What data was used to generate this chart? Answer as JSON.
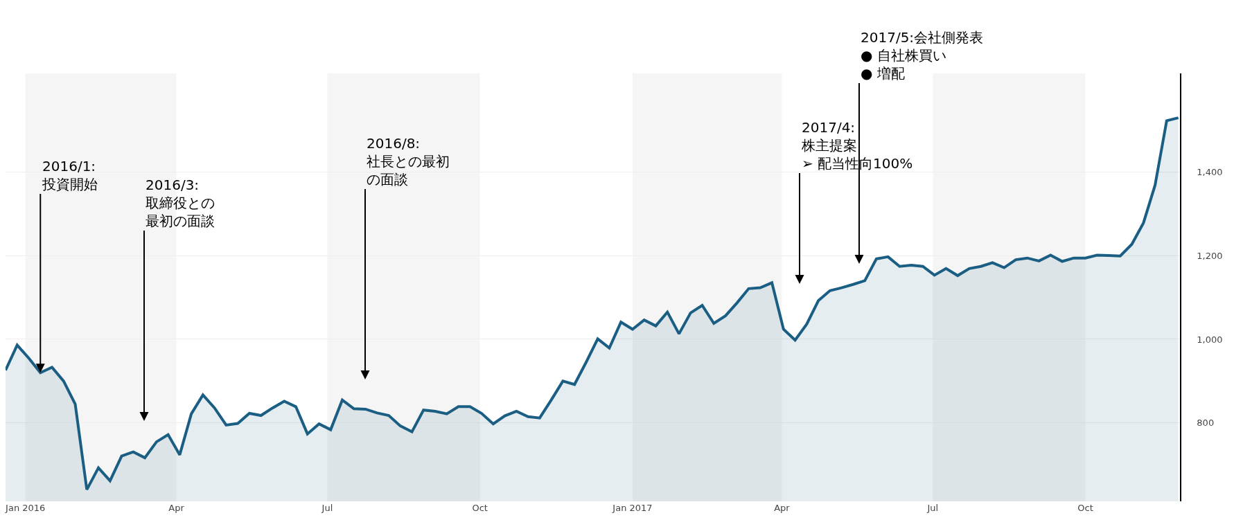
{
  "chart_data": {
    "type": "area",
    "x": [
      "2015-12-20",
      "2015-12-27",
      "2016-01-03",
      "2016-01-10",
      "2016-01-17",
      "2016-01-24",
      "2016-01-31",
      "2016-02-07",
      "2016-02-14",
      "2016-02-21",
      "2016-02-28",
      "2016-03-06",
      "2016-03-13",
      "2016-03-20",
      "2016-03-27",
      "2016-04-03",
      "2016-04-10",
      "2016-04-17",
      "2016-04-24",
      "2016-05-01",
      "2016-05-08",
      "2016-05-15",
      "2016-05-22",
      "2016-05-29",
      "2016-06-05",
      "2016-06-12",
      "2016-06-19",
      "2016-06-26",
      "2016-07-03",
      "2016-07-10",
      "2016-07-17",
      "2016-07-24",
      "2016-07-31",
      "2016-08-07",
      "2016-08-14",
      "2016-08-21",
      "2016-08-28",
      "2016-09-04",
      "2016-09-11",
      "2016-09-18",
      "2016-09-25",
      "2016-10-02",
      "2016-10-09",
      "2016-10-16",
      "2016-10-23",
      "2016-10-30",
      "2016-11-06",
      "2016-11-13",
      "2016-11-20",
      "2016-11-27",
      "2016-12-04",
      "2016-12-11",
      "2016-12-18",
      "2016-12-25",
      "2017-01-01",
      "2017-01-08",
      "2017-01-15",
      "2017-01-22",
      "2017-01-29",
      "2017-02-05",
      "2017-02-12",
      "2017-02-19",
      "2017-02-26",
      "2017-03-05",
      "2017-03-12",
      "2017-03-19",
      "2017-03-26",
      "2017-04-02",
      "2017-04-09",
      "2017-04-16",
      "2017-04-23",
      "2017-04-30",
      "2017-05-07",
      "2017-05-14",
      "2017-05-21",
      "2017-05-28",
      "2017-06-04",
      "2017-06-11",
      "2017-06-18",
      "2017-06-25",
      "2017-07-02",
      "2017-07-09",
      "2017-07-16",
      "2017-07-23",
      "2017-07-30",
      "2017-08-06",
      "2017-08-13",
      "2017-08-20",
      "2017-08-27",
      "2017-09-03",
      "2017-09-10",
      "2017-09-17",
      "2017-09-24",
      "2017-10-01",
      "2017-10-08",
      "2017-10-15",
      "2017-10-22",
      "2017-10-29",
      "2017-11-05",
      "2017-11-12",
      "2017-11-19",
      "2017-11-26"
    ],
    "series": [
      {
        "color": "#1b5e84",
        "values": [
          926,
          986,
          955,
          920,
          933,
          900,
          845,
          641,
          693,
          662,
          721,
          731,
          717,
          755,
          772,
          724,
          822,
          867,
          836,
          795,
          799,
          823,
          818,
          836,
          852,
          839,
          774,
          798,
          784,
          855,
          834,
          833,
          824,
          818,
          793,
          779,
          831,
          828,
          822,
          839,
          839,
          823,
          798,
          817,
          828,
          815,
          812,
          855,
          900,
          892,
          945,
          1001,
          979,
          1041,
          1024,
          1046,
          1032,
          1065,
          1013,
          1063,
          1081,
          1038,
          1056,
          1087,
          1121,
          1123,
          1135,
          1024,
          998,
          1036,
          1092,
          1116,
          1123,
          1131,
          1140,
          1192,
          1197,
          1174,
          1177,
          1174,
          1153,
          1169,
          1152,
          1169,
          1174,
          1183,
          1171,
          1190,
          1194,
          1187,
          1201,
          1186,
          1194,
          1194,
          1201,
          1200,
          1199,
          1227,
          1278,
          1368,
          1522,
          1529
        ]
      }
    ],
    "xlim": [
      "2015-12-20",
      "2017-11-27"
    ],
    "xticks": [
      {
        "value": "2016-01-01",
        "label": "Jan 2016"
      },
      {
        "value": "2016-04-01",
        "label": "Apr"
      },
      {
        "value": "2016-07-01",
        "label": "Jul"
      },
      {
        "value": "2016-10-01",
        "label": "Oct"
      },
      {
        "value": "2017-01-01",
        "label": "Jan 2017"
      },
      {
        "value": "2017-04-01",
        "label": "Apr"
      },
      {
        "value": "2017-07-01",
        "label": "Jul"
      },
      {
        "value": "2017-10-01",
        "label": "Oct"
      }
    ],
    "ylim": [
      613,
      1635
    ],
    "yticks": [
      {
        "value": 800,
        "label": "800"
      },
      {
        "value": 1000,
        "label": "1,000"
      },
      {
        "value": 1200,
        "label": "1,200"
      },
      {
        "value": 1400,
        "label": "1,400"
      }
    ],
    "grid": "y",
    "marker": "none",
    "line_style": "solid",
    "bands": [
      {
        "axis": "x",
        "from": "2016-01-01",
        "to": "2016-04-01",
        "color": "#f5f5f5"
      },
      {
        "axis": "x",
        "from": "2016-07-01",
        "to": "2016-10-01",
        "color": "#f5f5f5"
      },
      {
        "axis": "x",
        "from": "2017-01-01",
        "to": "2017-04-01",
        "color": "#f5f5f5"
      },
      {
        "axis": "x",
        "from": "2017-07-01",
        "to": "2017-10-01",
        "color": "#f5f5f5"
      }
    ],
    "annotations": [
      {
        "text": "2016/1:\n投資開始",
        "x": "2016-01-10",
        "y": 920
      },
      "2016/3:\n取締役との最初の面談",
      "2016/8:\n社長との最初の面談",
      "2017/4:\n株主提案\n➢ 配当性向100%",
      "2017/5:会社側発表\n● 自社株買い\n● 増配"
    ]
  }
}
